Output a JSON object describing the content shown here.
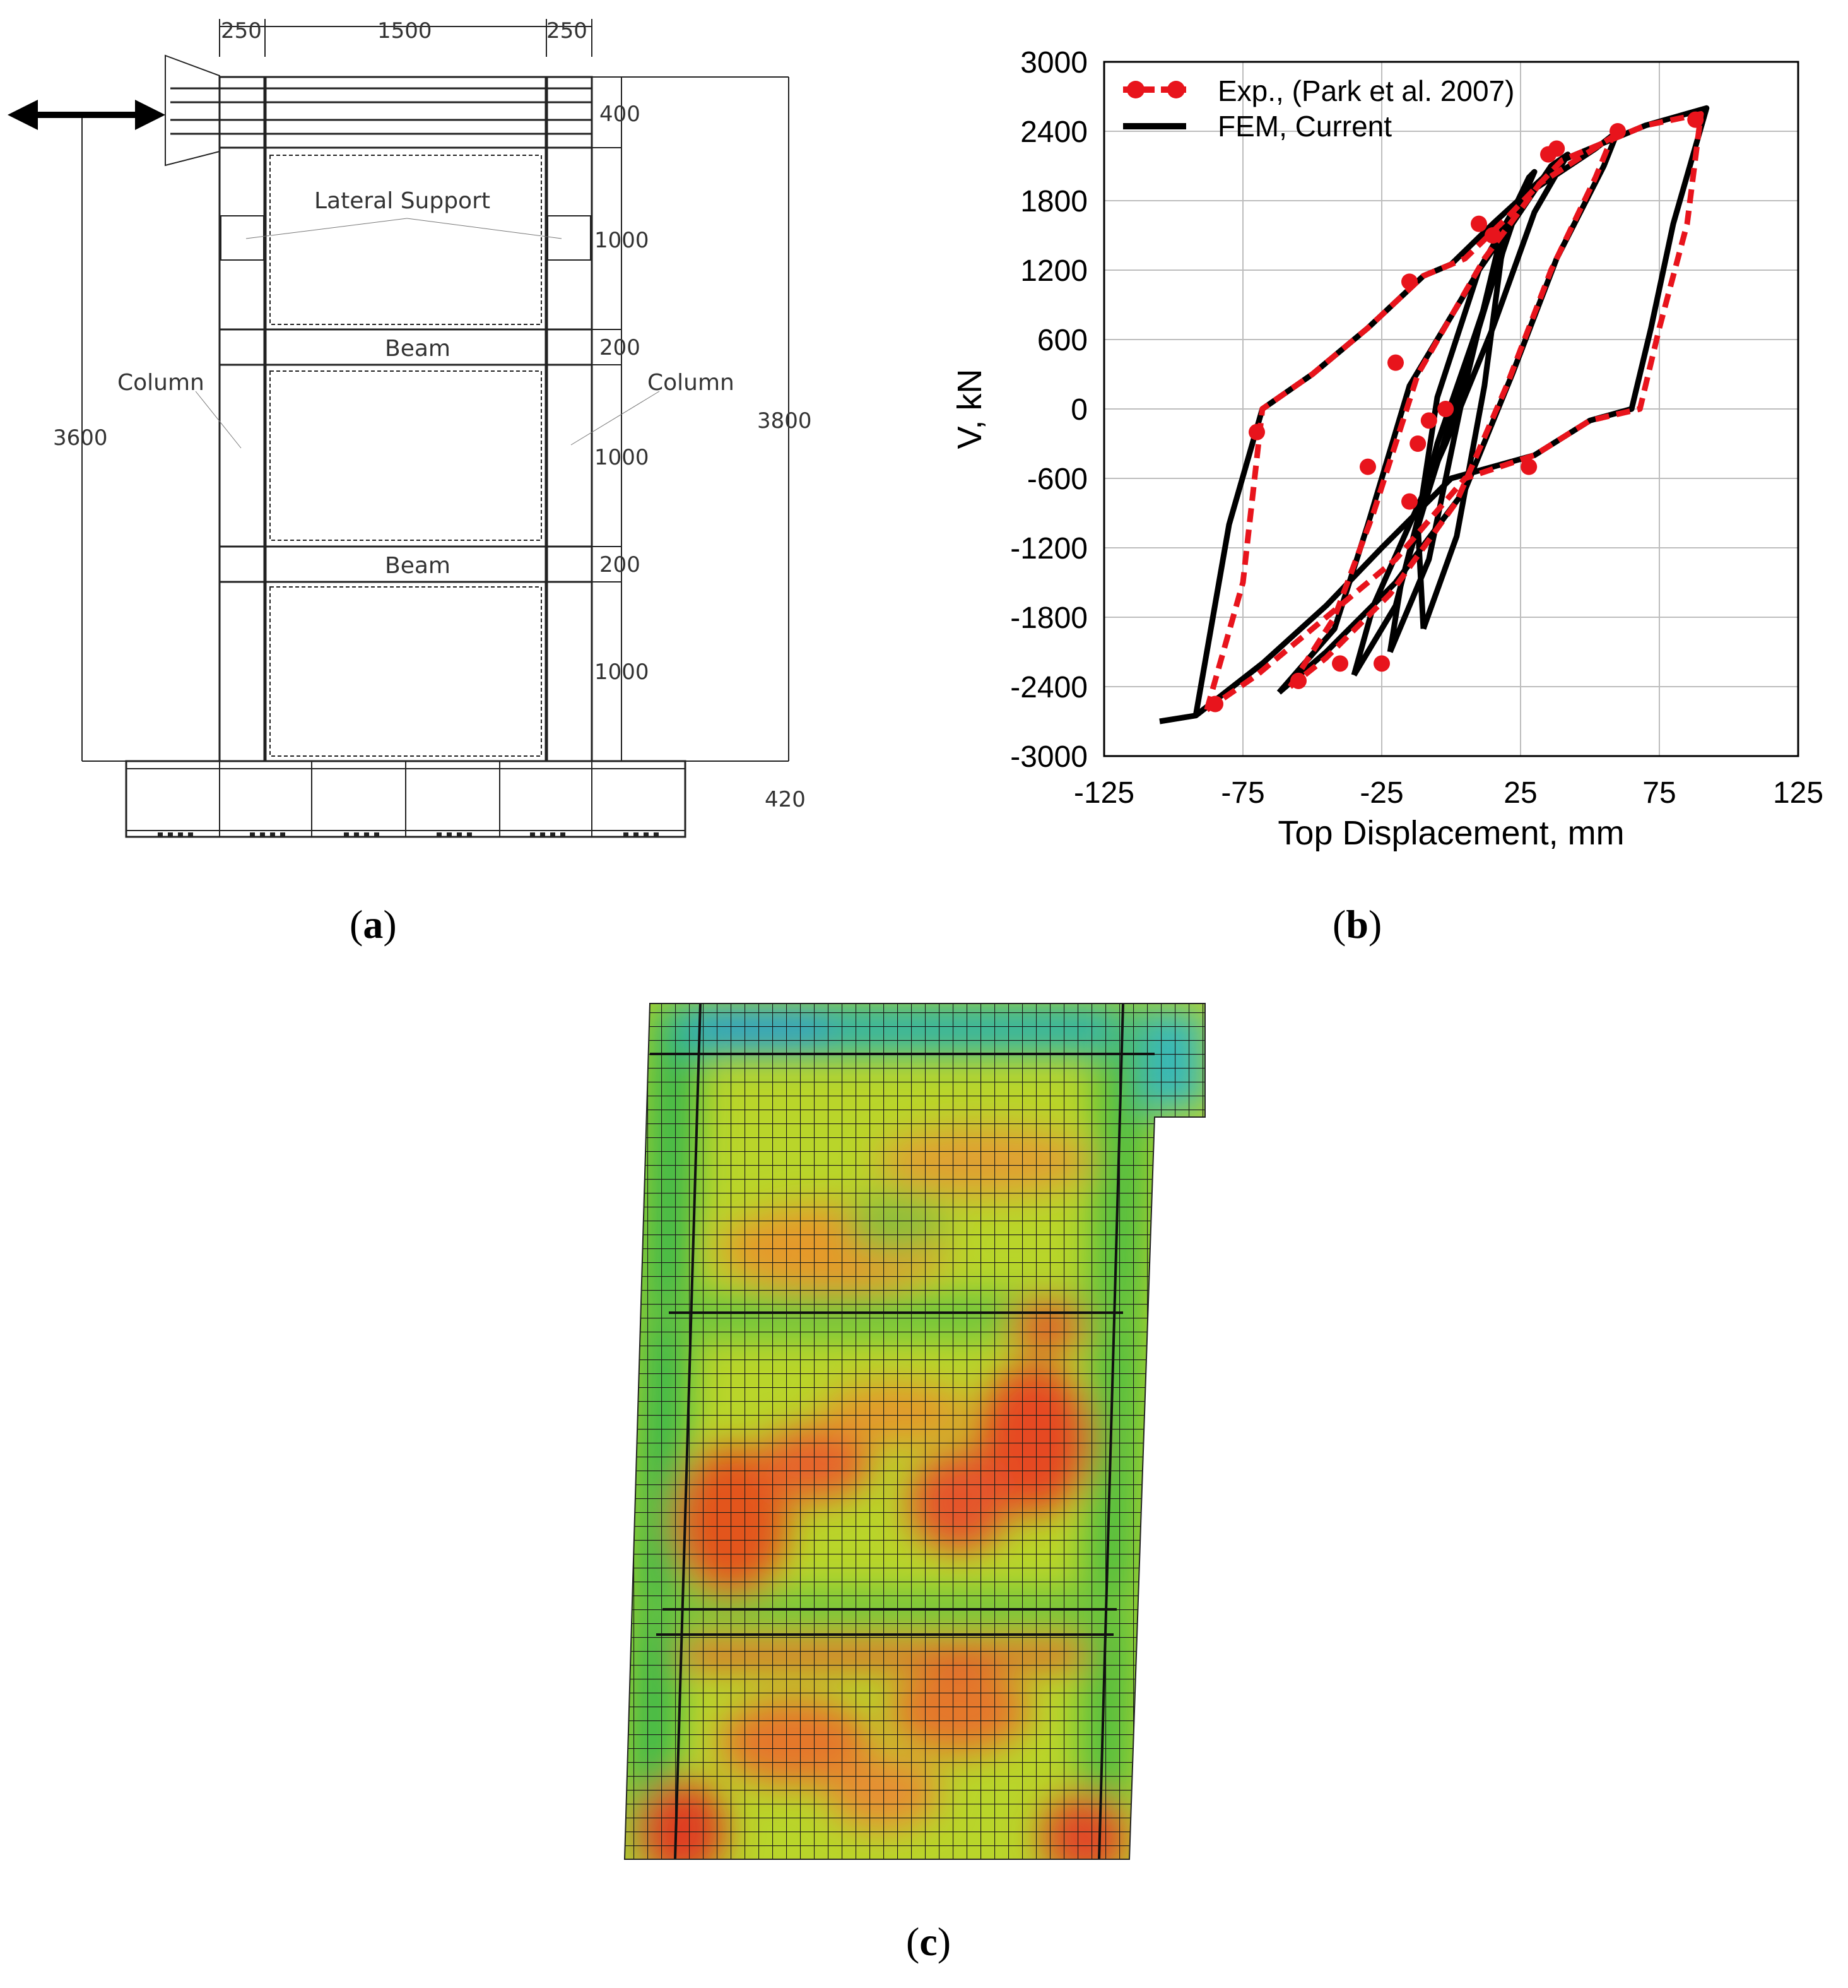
{
  "panel_a": {
    "dims_top": [
      "250",
      "1500",
      "250"
    ],
    "dims_right": [
      "400",
      "1000",
      "200",
      "1000",
      "200",
      "1000"
    ],
    "height_left": "3600",
    "height_right": "3800",
    "base": "420",
    "labels": {
      "lateral_support": "Lateral Support",
      "beam_upper": "Beam",
      "beam_lower": "Beam",
      "column_left": "Column",
      "column_right": "Column"
    },
    "caption": "a"
  },
  "chart_data": {
    "type": "line",
    "xlabel": "Top Displacement, mm",
    "ylabel": "V, kN",
    "xlim": [
      -125,
      125
    ],
    "ylim": [
      -3000,
      3000
    ],
    "xticks": [
      -125,
      -75,
      -25,
      25,
      75,
      125
    ],
    "yticks": [
      3000,
      2400,
      1800,
      1200,
      600,
      0,
      -600,
      -1200,
      -1800,
      -2400,
      -3000
    ],
    "grid": true,
    "legend_position": "top-left",
    "series": [
      {
        "name": "FEM, Current",
        "color": "#000000",
        "style": "solid",
        "loops": [
          [
            [
              -10,
              -1900
            ],
            [
              2,
              -1100
            ],
            [
              12,
              200
            ],
            [
              18,
              1300
            ],
            [
              22,
              1700
            ],
            [
              10,
              1200
            ],
            [
              -5,
              100
            ],
            [
              -12,
              -1000
            ],
            [
              -10,
              -1900
            ]
          ],
          [
            [
              -22,
              -2100
            ],
            [
              -8,
              -1300
            ],
            [
              5,
              200
            ],
            [
              18,
              1500
            ],
            [
              28,
              2000
            ],
            [
              30,
              2050
            ],
            [
              20,
              1500
            ],
            [
              5,
              300
            ],
            [
              -8,
              -700
            ],
            [
              -18,
              -1500
            ],
            [
              -22,
              -2100
            ]
          ],
          [
            [
              -35,
              -2300
            ],
            [
              -20,
              -1700
            ],
            [
              -5,
              -300
            ],
            [
              8,
              600
            ],
            [
              22,
              1600
            ],
            [
              36,
              2100
            ],
            [
              42,
              2200
            ],
            [
              30,
              1700
            ],
            [
              15,
              700
            ],
            [
              -2,
              -300
            ],
            [
              -15,
              -1000
            ],
            [
              -28,
              -1700
            ],
            [
              -35,
              -2300
            ]
          ],
          [
            [
              -62,
              -2450
            ],
            [
              -42,
              -1900
            ],
            [
              -30,
              -1000
            ],
            [
              -15,
              200
            ],
            [
              10,
              1200
            ],
            [
              30,
              1900
            ],
            [
              52,
              2250
            ],
            [
              60,
              2400
            ],
            [
              55,
              2100
            ],
            [
              38,
              1300
            ],
            [
              22,
              300
            ],
            [
              5,
              -700
            ],
            [
              -20,
              -1500
            ],
            [
              -45,
              -2100
            ],
            [
              -62,
              -2450
            ]
          ],
          [
            [
              -92,
              -2650
            ],
            [
              -68,
              -2200
            ],
            [
              -45,
              -1700
            ],
            [
              -25,
              -1200
            ],
            [
              0,
              -600
            ],
            [
              30,
              -400
            ],
            [
              50,
              -100
            ],
            [
              65,
              0
            ],
            [
              72,
              700
            ],
            [
              80,
              1600
            ],
            [
              92,
              2600
            ],
            [
              70,
              2450
            ],
            [
              40,
              2150
            ],
            [
              15,
              1600
            ],
            [
              0,
              1250
            ],
            [
              -10,
              1150
            ],
            [
              -30,
              700
            ],
            [
              -50,
              300
            ],
            [
              -68,
              0
            ],
            [
              -80,
              -1000
            ],
            [
              -92,
              -2650
            ]
          ]
        ]
      },
      {
        "name": "Exp., (Park et al. 2007)",
        "color": "#e8141c",
        "style": "dashed-dots",
        "points": [
          [
            -70,
            -200
          ],
          [
            -85,
            -2550
          ],
          [
            -55,
            -2350
          ],
          [
            -40,
            -2200
          ],
          [
            -25,
            -2200
          ],
          [
            -15,
            -800
          ],
          [
            -12,
            -300
          ],
          [
            -8,
            -100
          ],
          [
            -2,
            0
          ],
          [
            10,
            1600
          ],
          [
            15,
            1500
          ],
          [
            35,
            2200
          ],
          [
            38,
            2250
          ],
          [
            60,
            2400
          ],
          [
            88,
            2500
          ],
          [
            -15,
            1100
          ],
          [
            -20,
            400
          ],
          [
            -30,
            -500
          ],
          [
            28,
            -500
          ]
        ],
        "loops": [
          [
            [
              -88,
              -2600
            ],
            [
              -75,
              -1500
            ],
            [
              -68,
              0
            ],
            [
              -50,
              300
            ],
            [
              -30,
              700
            ],
            [
              -10,
              1150
            ],
            [
              5,
              1300
            ],
            [
              20,
              1650
            ],
            [
              40,
              2150
            ],
            [
              70,
              2450
            ],
            [
              90,
              2550
            ],
            [
              85,
              1600
            ],
            [
              75,
              700
            ],
            [
              68,
              0
            ],
            [
              50,
              -100
            ],
            [
              30,
              -400
            ],
            [
              5,
              -600
            ],
            [
              -20,
              -1300
            ],
            [
              -45,
              -1800
            ],
            [
              -70,
              -2300
            ],
            [
              -88,
              -2600
            ]
          ],
          [
            [
              -58,
              -2400
            ],
            [
              -42,
              -1800
            ],
            [
              -28,
              -900
            ],
            [
              -12,
              300
            ],
            [
              12,
              1300
            ],
            [
              32,
              1950
            ],
            [
              58,
              2350
            ],
            [
              52,
              2000
            ],
            [
              36,
              1200
            ],
            [
              20,
              200
            ],
            [
              2,
              -800
            ],
            [
              -22,
              -1600
            ],
            [
              -45,
              -2150
            ],
            [
              -58,
              -2400
            ]
          ]
        ]
      }
    ]
  },
  "panel_b": {
    "caption": "b"
  },
  "panel_c": {
    "caption": "c"
  }
}
